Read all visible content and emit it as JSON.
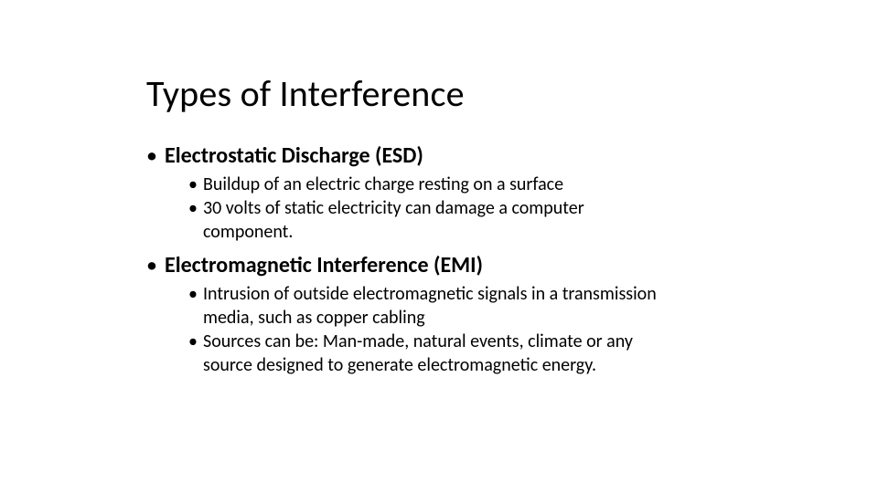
{
  "slide": {
    "title": "Types of Interference",
    "title_fontsize": 40,
    "title_color": "#000000",
    "background_color": "#ffffff",
    "text_color": "#000000",
    "font_family": "Calibri",
    "bullets": [
      {
        "text": "Electrostatic Discharge (ESD)",
        "fontsize": 24,
        "bold": true,
        "sub": [
          {
            "text": "Buildup of an electric charge resting on a surface",
            "fontsize": 20
          },
          {
            "text": "30 volts of static electricity can damage a computer component.",
            "fontsize": 20
          }
        ]
      },
      {
        "text": "Electromagnetic Interference (EMI)",
        "fontsize": 24,
        "bold": true,
        "sub": [
          {
            "text": "Intrusion of outside electromagnetic signals in a transmission media, such as copper cabling",
            "fontsize": 20
          },
          {
            "text": "Sources can be: Man-made, natural events, climate or any source designed to generate electromagnetic energy.",
            "fontsize": 20
          }
        ]
      }
    ]
  }
}
